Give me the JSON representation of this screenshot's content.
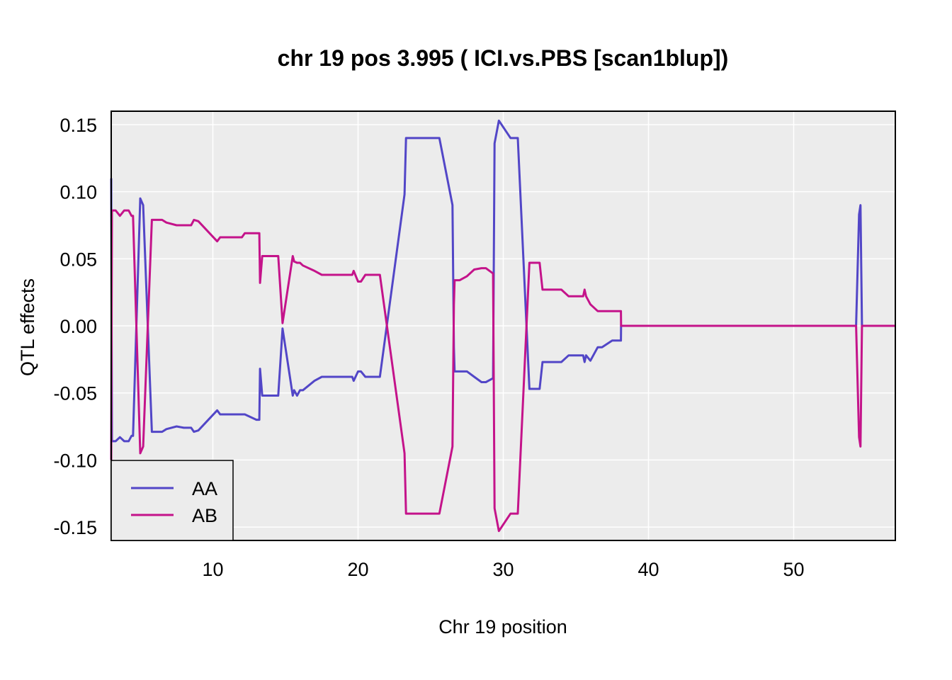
{
  "chart_data": {
    "type": "line",
    "title": "chr 19 pos 3.995 ( ICI.vs.PBS  [scan1blup])",
    "xlabel": "Chr 19 position",
    "ylabel": "QTL effects",
    "xlim": [
      3.0,
      57.0
    ],
    "ylim": [
      -0.16,
      0.16
    ],
    "xticks": [
      10,
      20,
      30,
      40,
      50
    ],
    "xtick_labels": [
      "10",
      "20",
      "30",
      "40",
      "50"
    ],
    "yticks": [
      0.15,
      0.1,
      0.05,
      0.0,
      -0.05,
      -0.1,
      -0.15
    ],
    "ytick_labels": [
      "0.15",
      "0.10",
      "0.05",
      "0.00",
      "-0.05",
      "-0.10",
      "-0.15"
    ],
    "grid": true,
    "legend_position": "bottom-left",
    "series": [
      {
        "name": "AA",
        "color": "#5246c7",
        "x": [
          3.0,
          3.05,
          3.3,
          3.6,
          3.9,
          4.2,
          4.4,
          4.5,
          5.0,
          5.2,
          5.8,
          6.2,
          6.5,
          6.8,
          7.5,
          8.0,
          8.5,
          8.7,
          9.0,
          10.3,
          10.5,
          10.8,
          11.5,
          12.0,
          12.2,
          13.0,
          13.2,
          13.25,
          13.4,
          14.2,
          14.5,
          14.8,
          15.5,
          15.6,
          15.8,
          16.0,
          16.2,
          17.0,
          17.5,
          18.5,
          19.6,
          19.7,
          20.0,
          20.2,
          20.5,
          21.5,
          23.2,
          23.3,
          24.5,
          25.6,
          26.5,
          26.6,
          26.65,
          27.0,
          27.5,
          28.0,
          28.5,
          28.8,
          29.3,
          29.4,
          29.7,
          30.5,
          31.0,
          31.6,
          31.8,
          32.5,
          32.7,
          34.0,
          34.5,
          35.5,
          35.6,
          35.7,
          36.0,
          36.5,
          36.8,
          37.5,
          38.1,
          38.11,
          40.0,
          45.0,
          50.0,
          54.0,
          54.3,
          54.5,
          54.6,
          54.7,
          55.0,
          57.0
        ],
        "y": [
          0.11,
          -0.086,
          -0.086,
          -0.083,
          -0.086,
          -0.086,
          -0.082,
          -0.082,
          0.095,
          0.09,
          -0.079,
          -0.079,
          -0.079,
          -0.077,
          -0.075,
          -0.076,
          -0.076,
          -0.079,
          -0.078,
          -0.063,
          -0.066,
          -0.066,
          -0.066,
          -0.066,
          -0.066,
          -0.07,
          -0.07,
          -0.032,
          -0.052,
          -0.052,
          -0.052,
          -0.002,
          -0.052,
          -0.048,
          -0.052,
          -0.048,
          -0.048,
          -0.041,
          -0.038,
          -0.038,
          -0.038,
          -0.041,
          -0.034,
          -0.034,
          -0.038,
          -0.038,
          0.098,
          0.14,
          0.14,
          0.14,
          0.09,
          -0.016,
          -0.034,
          -0.034,
          -0.034,
          -0.038,
          -0.042,
          -0.042,
          -0.039,
          0.136,
          0.153,
          0.14,
          0.14,
          0.0,
          -0.047,
          -0.047,
          -0.027,
          -0.027,
          -0.022,
          -0.022,
          -0.027,
          -0.022,
          -0.026,
          -0.016,
          -0.016,
          -0.011,
          -0.011,
          0.0,
          0.0,
          0.0,
          0.0,
          0.0,
          0.0,
          0.083,
          0.09,
          0.0,
          0.0,
          0.0
        ]
      },
      {
        "name": "AB",
        "color": "#c4138a",
        "x": [
          3.0,
          3.05,
          3.3,
          3.6,
          3.9,
          4.2,
          4.4,
          4.5,
          5.0,
          5.2,
          5.8,
          6.2,
          6.5,
          6.8,
          7.5,
          8.0,
          8.5,
          8.7,
          9.0,
          10.3,
          10.5,
          10.8,
          11.5,
          12.0,
          12.2,
          13.0,
          13.2,
          13.25,
          13.4,
          14.2,
          14.5,
          14.8,
          15.5,
          15.6,
          15.8,
          16.0,
          16.2,
          17.0,
          17.5,
          18.5,
          19.6,
          19.7,
          20.0,
          20.2,
          20.5,
          21.5,
          23.2,
          23.3,
          24.5,
          25.6,
          26.5,
          26.6,
          26.65,
          27.0,
          27.5,
          28.0,
          28.5,
          28.8,
          29.3,
          29.4,
          29.7,
          30.5,
          31.0,
          31.6,
          31.8,
          32.5,
          32.7,
          34.0,
          34.5,
          35.5,
          35.6,
          35.7,
          36.0,
          36.5,
          36.8,
          37.5,
          38.1,
          38.11,
          40.0,
          45.0,
          50.0,
          54.0,
          54.3,
          54.5,
          54.6,
          54.7,
          55.0,
          57.0
        ],
        "y": [
          -0.1,
          0.086,
          0.086,
          0.082,
          0.086,
          0.086,
          0.082,
          0.082,
          -0.095,
          -0.09,
          0.079,
          0.079,
          0.079,
          0.077,
          0.075,
          0.075,
          0.075,
          0.079,
          0.078,
          0.063,
          0.066,
          0.066,
          0.066,
          0.066,
          0.069,
          0.069,
          0.069,
          0.032,
          0.052,
          0.052,
          0.052,
          0.002,
          0.052,
          0.048,
          0.047,
          0.047,
          0.045,
          0.041,
          0.038,
          0.038,
          0.038,
          0.041,
          0.033,
          0.033,
          0.038,
          0.038,
          -0.095,
          -0.14,
          -0.14,
          -0.14,
          -0.09,
          0.016,
          0.034,
          0.034,
          0.037,
          0.042,
          0.043,
          0.043,
          0.039,
          -0.136,
          -0.153,
          -0.14,
          -0.14,
          0.0,
          0.047,
          0.047,
          0.027,
          0.027,
          0.022,
          0.022,
          0.027,
          0.022,
          0.016,
          0.011,
          0.011,
          0.011,
          0.011,
          0.0,
          0.0,
          0.0,
          0.0,
          0.0,
          0.0,
          -0.083,
          -0.09,
          0.0,
          0.0,
          0.0
        ]
      }
    ]
  }
}
